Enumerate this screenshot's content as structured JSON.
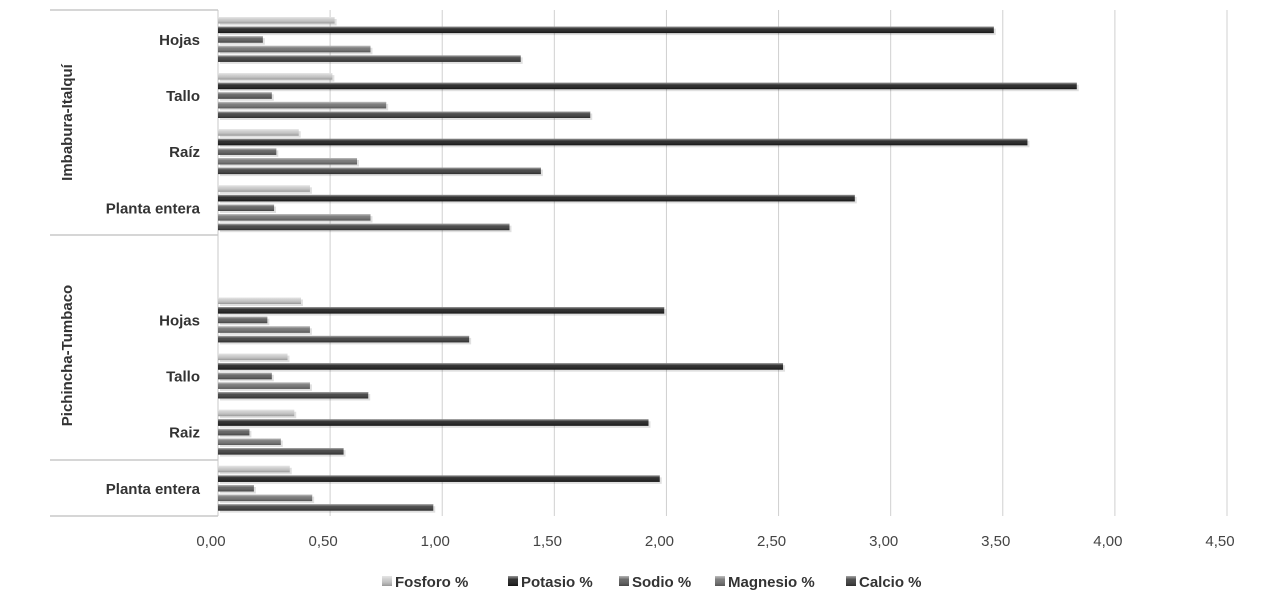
{
  "chart_data": {
    "type": "bar",
    "orientation": "horizontal",
    "title": "",
    "xlabel": "",
    "ylabel": "",
    "xlim": [
      0,
      4.5
    ],
    "ticks": [
      "0,00",
      "0,50",
      "1,00",
      "1,50",
      "2,00",
      "2,50",
      "3,00",
      "3,50",
      "4,00",
      "4,50"
    ],
    "grid": true,
    "legend_position": "bottom",
    "groups": [
      {
        "name": "Imbabura-Italquí",
        "categories": [
          "Hojas",
          "Tallo",
          "Raíz",
          "Planta entera"
        ]
      },
      {
        "name": "Pichincha-Tumbaco",
        "categories": [
          "Hojas",
          "Tallo",
          "Raiz",
          "Planta entera"
        ]
      }
    ],
    "series": [
      {
        "name": "Fosforo %",
        "color": "#c8c8c8",
        "values": [
          [
            0.52,
            0.51,
            0.36,
            0.41
          ],
          [
            0.37,
            0.31,
            0.34,
            0.32
          ]
        ]
      },
      {
        "name": "Potasio %",
        "color": "#1a1a1a",
        "values": [
          [
            3.46,
            3.83,
            3.61,
            2.84
          ],
          [
            1.99,
            2.52,
            1.92,
            1.97
          ]
        ]
      },
      {
        "name": "Sodio %",
        "color": "#5a5a5a",
        "values": [
          [
            0.2,
            0.24,
            0.26,
            0.25
          ],
          [
            0.22,
            0.24,
            0.14,
            0.16
          ]
        ]
      },
      {
        "name": "Magnesio %",
        "color": "#707070",
        "values": [
          [
            0.68,
            0.75,
            0.62,
            0.68
          ],
          [
            0.41,
            0.41,
            0.28,
            0.42
          ]
        ]
      },
      {
        "name": "Calcio %",
        "color": "#3a3a3a",
        "values": [
          [
            1.35,
            1.66,
            1.44,
            1.3
          ],
          [
            1.12,
            0.67,
            0.56,
            0.96
          ]
        ]
      }
    ]
  }
}
